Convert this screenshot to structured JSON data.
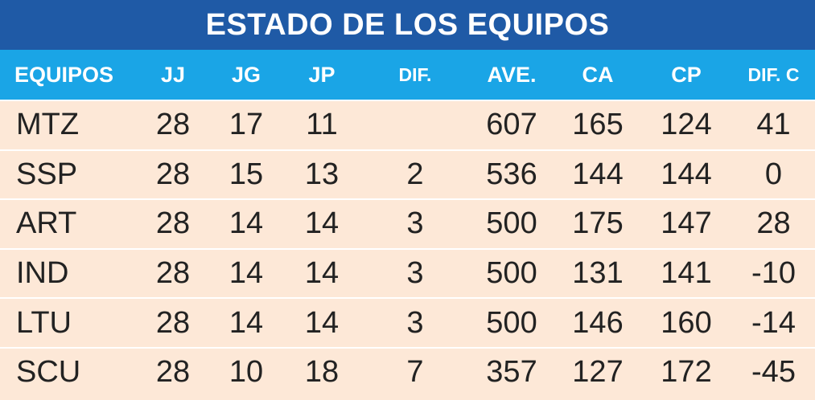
{
  "title": "ESTADO DE LOS EQUIPOS",
  "colors": {
    "title_bar": "#1f5aa6",
    "header_bar": "#1aa5e6",
    "row_background": "#fde8d7",
    "text": "#222222"
  },
  "table": {
    "headers": {
      "team": "EQUIPOS",
      "jj": "JJ",
      "jg": "JG",
      "jp": "JP",
      "dif": "DIF.",
      "ave": "AVE.",
      "ca": "CA",
      "cp": "CP",
      "difc": "DIF. C"
    },
    "rows": [
      {
        "team": "MTZ",
        "jj": "28",
        "jg": "17",
        "jp": "11",
        "dif": "",
        "ave": "607",
        "ca": "165",
        "cp": "124",
        "difc": "41"
      },
      {
        "team": "SSP",
        "jj": "28",
        "jg": "15",
        "jp": "13",
        "dif": "2",
        "ave": "536",
        "ca": "144",
        "cp": "144",
        "difc": "0"
      },
      {
        "team": "ART",
        "jj": "28",
        "jg": "14",
        "jp": "14",
        "dif": "3",
        "ave": "500",
        "ca": "175",
        "cp": "147",
        "difc": "28"
      },
      {
        "team": "IND",
        "jj": "28",
        "jg": "14",
        "jp": "14",
        "dif": "3",
        "ave": "500",
        "ca": "131",
        "cp": "141",
        "difc": "-10"
      },
      {
        "team": "LTU",
        "jj": "28",
        "jg": "14",
        "jp": "14",
        "dif": "3",
        "ave": "500",
        "ca": "146",
        "cp": "160",
        "difc": "-14"
      },
      {
        "team": "SCU",
        "jj": "28",
        "jg": "10",
        "jp": "18",
        "dif": "7",
        "ave": "357",
        "ca": "127",
        "cp": "172",
        "difc": "-45"
      }
    ]
  }
}
